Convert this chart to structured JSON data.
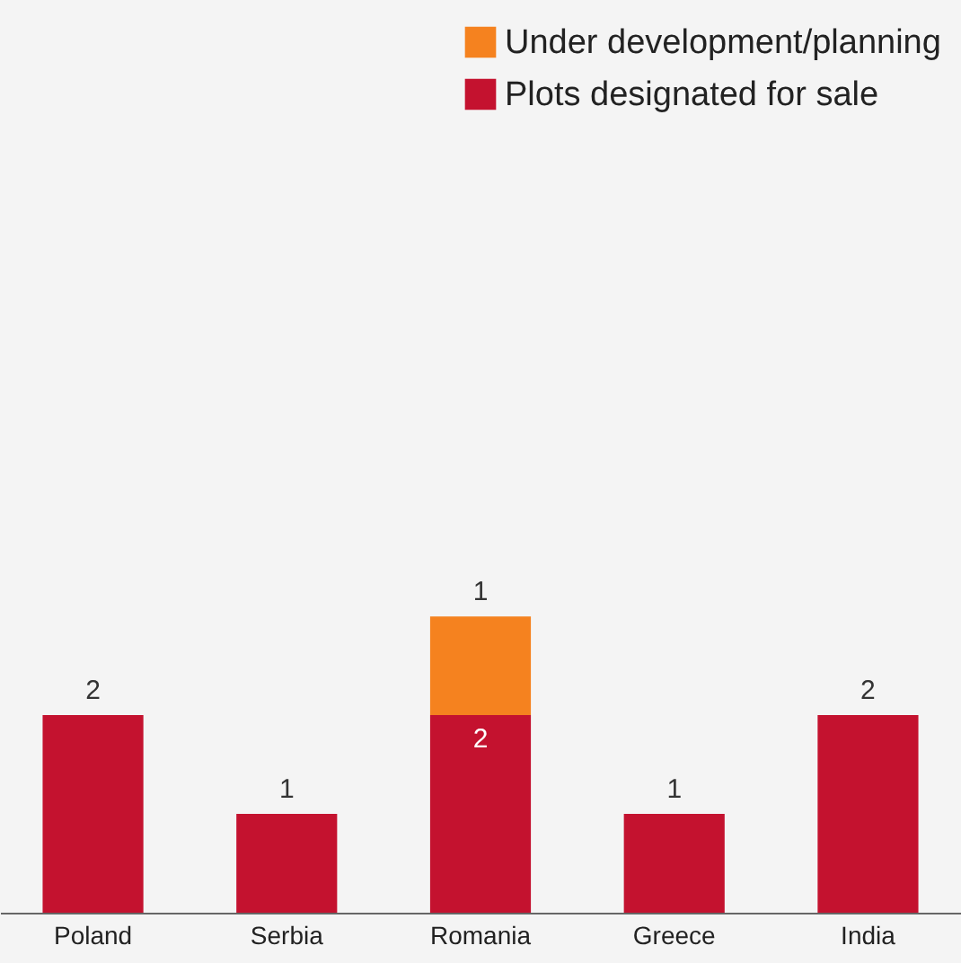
{
  "chart_data": {
    "type": "bar",
    "stacked": true,
    "categories": [
      "Poland",
      "Serbia",
      "Romania",
      "Greece",
      "India"
    ],
    "series": [
      {
        "name": "Plots designated for sale",
        "color": "#c4122f",
        "values": [
          2,
          1,
          2,
          1,
          2
        ]
      },
      {
        "name": "Under development/planning",
        "color": "#f5821f",
        "values": [
          null,
          null,
          1,
          null,
          null
        ]
      }
    ],
    "data_labels": true,
    "legend": "top right",
    "grid": false
  }
}
